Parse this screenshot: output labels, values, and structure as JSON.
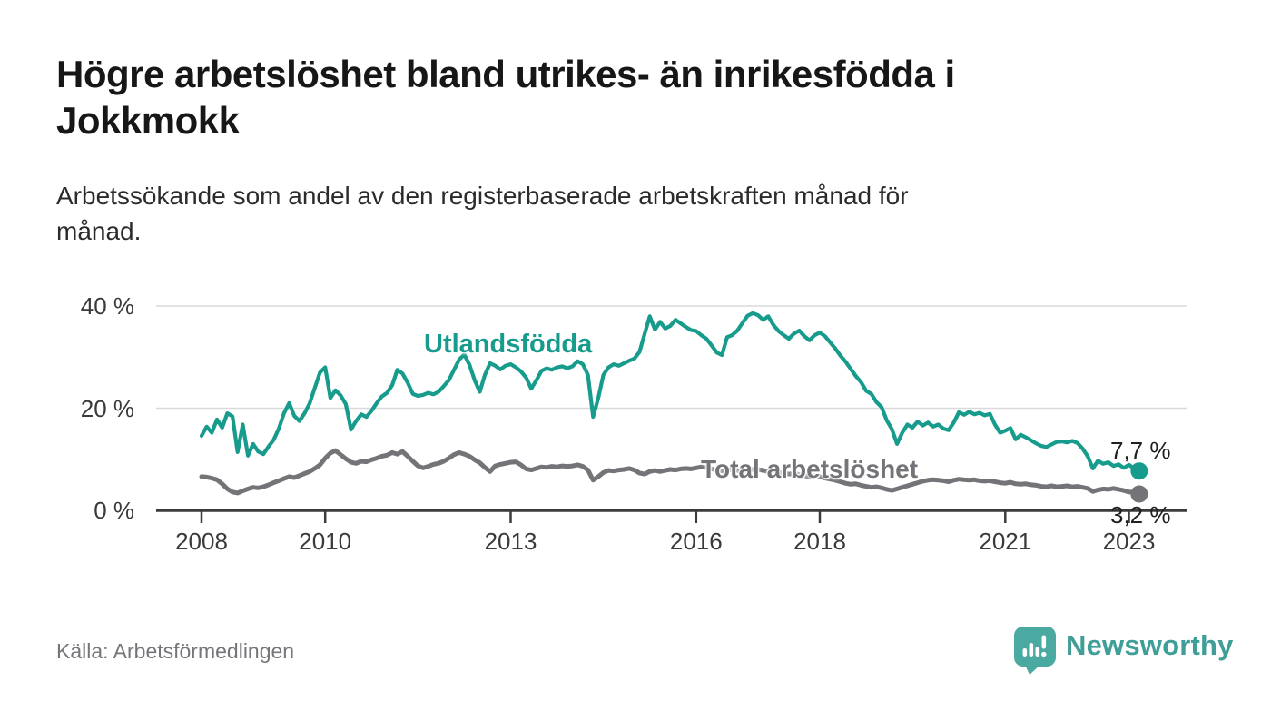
{
  "page": {
    "title_line1": "Högre arbetslöshet bland utrikes- än inrikesfödda i",
    "title_line2": "Jokkmokk",
    "subtitle_line1": "Arbetssökande som andel av den registerbaserade arbetskraften månad för",
    "subtitle_line2": "månad.",
    "source": "Källa: Arbetsförmedlingen",
    "background_color": "#ffffff"
  },
  "logo": {
    "text": "Newsworthy",
    "text_color": "#3f9e97",
    "icon_color": "#4aa9a1",
    "icon": "newsworthy-speech-bubble-chart-icon"
  },
  "chart_data": {
    "type": "line",
    "title": "Högre arbetslöshet bland utrikes- än inrikesfödda i Jokkmokk",
    "subtitle": "Arbetssökande som andel av den registerbaserade arbetskraften månad för månad.",
    "frequency": "monthly",
    "x_start_year": 2008,
    "x_start_month": 1,
    "x_ticks": [
      2008,
      2010,
      2013,
      2016,
      2018,
      2021,
      2023
    ],
    "x_tick_labels": [
      "2008",
      "2010",
      "2013",
      "2016",
      "2018",
      "2021",
      "2023"
    ],
    "y_ticks": [
      0,
      20,
      40
    ],
    "y_tick_labels": [
      "0 %",
      "20 %",
      "40 %"
    ],
    "ylim": [
      0,
      42
    ],
    "grid": "horizontal",
    "legend_position": "inline-labels",
    "axis_color": "#3b3b3b",
    "grid_color": "#d9d9d9",
    "series": [
      {
        "name": "Utlandsfödda",
        "color": "#169b8c",
        "end_label": "7,7 %",
        "end_value": 7.7,
        "values": [
          14.6,
          16.4,
          15.2,
          17.8,
          16.2,
          19.0,
          18.4,
          11.4,
          16.8,
          10.7,
          13.0,
          11.5,
          11.0,
          12.5,
          13.8,
          16.0,
          19.0,
          21.0,
          18.5,
          17.5,
          19.0,
          21.0,
          24.0,
          27.0,
          28.0,
          22.0,
          23.5,
          22.5,
          20.8,
          15.8,
          17.5,
          18.8,
          18.3,
          19.5,
          21.0,
          22.3,
          23.0,
          24.5,
          27.5,
          26.8,
          25.0,
          22.8,
          22.4,
          22.6,
          23.0,
          22.7,
          23.2,
          24.3,
          25.5,
          27.5,
          29.5,
          30.5,
          28.5,
          25.5,
          23.2,
          26.5,
          28.8,
          28.3,
          27.6,
          28.3,
          28.6,
          28.0,
          27.2,
          26.0,
          23.8,
          25.5,
          27.3,
          27.8,
          27.5,
          28.0,
          28.2,
          27.8,
          28.2,
          29.2,
          28.6,
          26.5,
          18.3,
          22.0,
          26.5,
          28.0,
          28.6,
          28.3,
          28.8,
          29.3,
          29.7,
          31.0,
          34.5,
          38.0,
          35.4,
          36.9,
          35.6,
          36.1,
          37.3,
          36.6,
          35.9,
          35.3,
          35.1,
          34.3,
          33.6,
          32.3,
          30.9,
          30.4,
          33.9,
          34.3,
          35.2,
          36.7,
          38.1,
          38.6,
          38.2,
          37.3,
          38.0,
          36.3,
          35.1,
          34.3,
          33.6,
          34.6,
          35.2,
          34.1,
          33.3,
          34.3,
          34.8,
          34.1,
          32.9,
          31.7,
          30.3,
          29.1,
          27.7,
          26.3,
          25.1,
          23.4,
          22.8,
          21.2,
          20.2,
          17.6,
          15.9,
          13.0,
          15.2,
          16.8,
          16.2,
          17.4,
          16.6,
          17.2,
          16.4,
          16.8,
          16.0,
          15.7,
          17.2,
          19.2,
          18.7,
          19.3,
          18.8,
          19.1,
          18.6,
          18.9,
          16.8,
          15.2,
          15.6,
          16.1,
          13.9,
          14.8,
          14.3,
          13.7,
          13.1,
          12.6,
          12.4,
          12.9,
          13.4,
          13.5,
          13.3,
          13.6,
          13.2,
          12.1,
          10.6,
          8.2,
          9.7,
          9.1,
          9.4,
          8.7,
          9.0,
          8.3,
          8.9,
          8.2,
          7.7
        ]
      },
      {
        "name": "Total arbetslöshet",
        "color": "#737378",
        "end_label": "3,2 %",
        "end_value": 3.2,
        "values": [
          6.6,
          6.5,
          6.3,
          6.0,
          5.2,
          4.2,
          3.6,
          3.4,
          3.8,
          4.2,
          4.5,
          4.4,
          4.6,
          5.0,
          5.4,
          5.8,
          6.2,
          6.6,
          6.4,
          6.8,
          7.2,
          7.6,
          8.2,
          8.9,
          10.2,
          11.2,
          11.7,
          10.9,
          10.1,
          9.4,
          9.2,
          9.6,
          9.5,
          9.9,
          10.2,
          10.6,
          10.8,
          11.3,
          11.0,
          11.5,
          10.6,
          9.6,
          8.7,
          8.3,
          8.6,
          9.0,
          9.2,
          9.6,
          10.2,
          10.9,
          11.3,
          11.0,
          10.6,
          9.9,
          9.3,
          8.4,
          7.6,
          8.7,
          9.0,
          9.2,
          9.4,
          9.5,
          8.9,
          8.1,
          7.9,
          8.2,
          8.5,
          8.4,
          8.6,
          8.5,
          8.7,
          8.6,
          8.7,
          8.9,
          8.6,
          7.9,
          5.9,
          6.6,
          7.4,
          7.8,
          7.7,
          7.9,
          8.0,
          8.2,
          7.9,
          7.3,
          7.1,
          7.6,
          7.8,
          7.6,
          7.8,
          8.0,
          7.9,
          8.1,
          8.2,
          8.1,
          8.3,
          8.5,
          8.4,
          8.1,
          7.9,
          7.7,
          7.9,
          8.0,
          7.8,
          7.6,
          7.8,
          8.0,
          8.0,
          7.8,
          7.6,
          7.3,
          7.5,
          7.3,
          7.1,
          7.2,
          7.0,
          6.8,
          6.6,
          6.8,
          6.6,
          6.3,
          6.1,
          5.9,
          5.6,
          5.3,
          5.1,
          5.2,
          4.9,
          4.7,
          4.5,
          4.6,
          4.4,
          4.1,
          3.9,
          4.2,
          4.5,
          4.8,
          5.1,
          5.4,
          5.7,
          5.9,
          6.0,
          5.9,
          5.8,
          5.6,
          5.9,
          6.1,
          6.0,
          5.9,
          6.0,
          5.8,
          5.7,
          5.8,
          5.6,
          5.4,
          5.3,
          5.5,
          5.2,
          5.1,
          5.2,
          5.0,
          4.9,
          4.7,
          4.6,
          4.8,
          4.6,
          4.7,
          4.8,
          4.6,
          4.7,
          4.5,
          4.3,
          3.7,
          4.0,
          4.2,
          4.1,
          4.3,
          4.1,
          3.9,
          3.6,
          3.5,
          3.2
        ]
      }
    ]
  }
}
